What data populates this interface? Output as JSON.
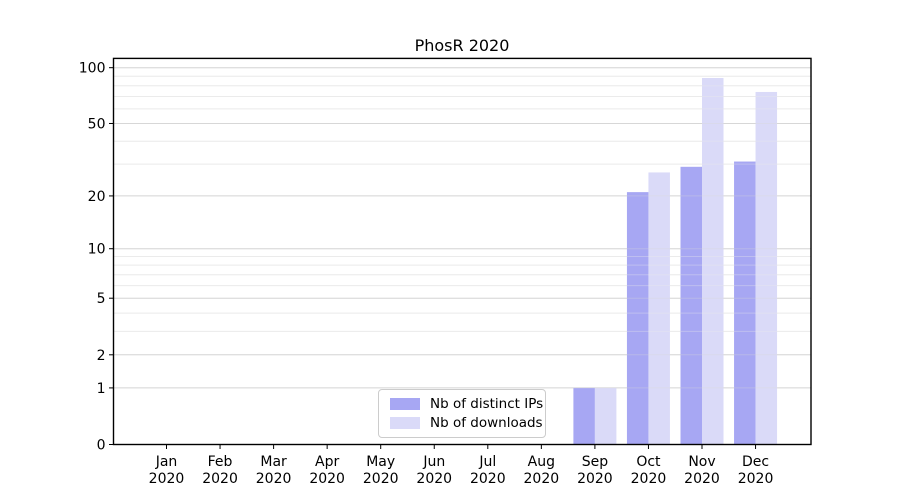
{
  "chart_data": {
    "type": "bar",
    "title": "PhosR 2020",
    "categories": [
      {
        "month": "Jan",
        "year": "2020"
      },
      {
        "month": "Feb",
        "year": "2020"
      },
      {
        "month": "Mar",
        "year": "2020"
      },
      {
        "month": "Apr",
        "year": "2020"
      },
      {
        "month": "May",
        "year": "2020"
      },
      {
        "month": "Jun",
        "year": "2020"
      },
      {
        "month": "Jul",
        "year": "2020"
      },
      {
        "month": "Aug",
        "year": "2020"
      },
      {
        "month": "Sep",
        "year": "2020"
      },
      {
        "month": "Oct",
        "year": "2020"
      },
      {
        "month": "Nov",
        "year": "2020"
      },
      {
        "month": "Dec",
        "year": "2020"
      }
    ],
    "series": [
      {
        "key": "distinct-ips",
        "name": "Nb of distinct IPs",
        "color": "#a7a7f3",
        "values": [
          0,
          0,
          0,
          0,
          0,
          0,
          0,
          0,
          1,
          21,
          29,
          31
        ]
      },
      {
        "key": "downloads",
        "name": "Nb of downloads",
        "color": "#dadaf8",
        "values": [
          0,
          0,
          0,
          0,
          0,
          0,
          0,
          0,
          1,
          27,
          88,
          74
        ]
      }
    ],
    "y_axis": {
      "scale": "log1p",
      "ticks": [
        0,
        1,
        2,
        5,
        10,
        20,
        50,
        100
      ],
      "minor_gridlines": [
        3,
        4,
        6,
        7,
        8,
        9,
        30,
        40,
        60,
        70,
        80,
        90
      ],
      "ylim": [
        0,
        112
      ]
    },
    "legend_position": "bottom-center",
    "grid": true,
    "colors": {
      "axis": "#000000",
      "major_grid": "#d8d8d8",
      "minor_grid": "#ececec",
      "text": "#000000",
      "background": "#ffffff"
    }
  }
}
